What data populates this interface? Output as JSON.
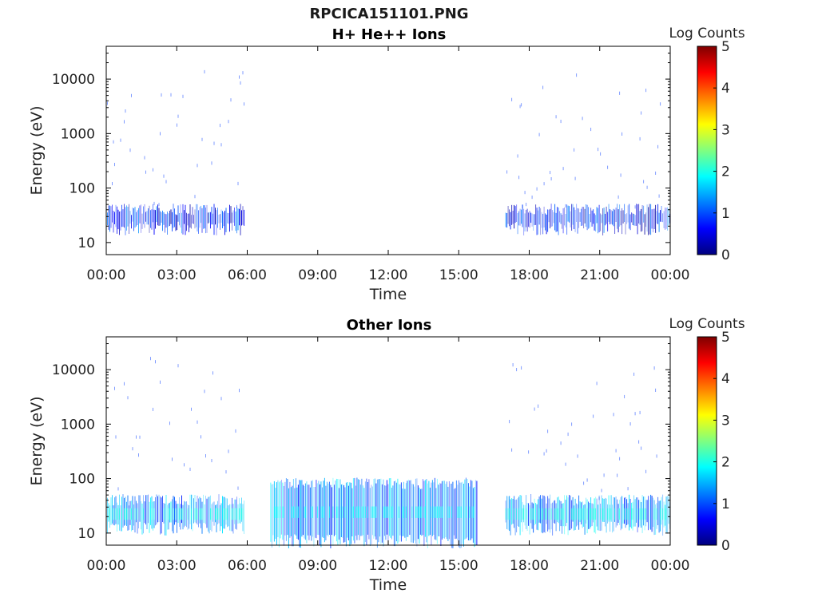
{
  "figure": {
    "title_line1": "RPCICA151101.PNG"
  },
  "chart_data": [
    {
      "type": "heatmap",
      "title": "H+ He++ Ions",
      "xlabel": "Time",
      "ylabel": "Energy (eV)",
      "x_ticks": [
        "00:00",
        "03:00",
        "06:00",
        "09:00",
        "12:00",
        "15:00",
        "18:00",
        "21:00",
        "00:00"
      ],
      "xlim_hours": [
        0,
        24
      ],
      "y_scale": "log",
      "y_ticks": [
        "10",
        "100",
        "1000",
        "10000"
      ],
      "ylim": [
        6,
        40000
      ],
      "colorbar": {
        "label": "Log Counts",
        "range": [
          0,
          5
        ],
        "ticks": [
          "0",
          "1",
          "2",
          "3",
          "4",
          "5"
        ],
        "colormap": "jet"
      },
      "data_segments": [
        {
          "start_hour": 0.0,
          "end_hour": 5.9,
          "band_energy_eV": [
            18,
            40
          ],
          "log_counts": 0.8,
          "sparse_high_energy": true
        },
        {
          "start_hour": 17.0,
          "end_hour": 24.0,
          "band_energy_eV": [
            18,
            40
          ],
          "log_counts": 0.8,
          "sparse_high_energy": true
        }
      ]
    },
    {
      "type": "heatmap",
      "title": "Other Ions",
      "xlabel": "Time",
      "ylabel": "Energy (eV)",
      "x_ticks": [
        "00:00",
        "03:00",
        "06:00",
        "09:00",
        "12:00",
        "15:00",
        "18:00",
        "21:00",
        "00:00"
      ],
      "xlim_hours": [
        0,
        24
      ],
      "y_scale": "log",
      "y_ticks": [
        "10",
        "100",
        "1000",
        "10000"
      ],
      "ylim": [
        6,
        40000
      ],
      "colorbar": {
        "label": "Log Counts",
        "range": [
          0,
          5
        ],
        "ticks": [
          "0",
          "1",
          "2",
          "3",
          "4",
          "5"
        ],
        "colormap": "jet"
      },
      "data_segments": [
        {
          "start_hour": 0.0,
          "end_hour": 5.9,
          "band_energy_eV": [
            12,
            40
          ],
          "log_counts": 1.4,
          "sparse_high_energy": true
        },
        {
          "start_hour": 7.0,
          "end_hour": 15.8,
          "band_energy_eV": [
            7,
            80
          ],
          "log_counts": 1.3,
          "sparse_high_energy": false
        },
        {
          "start_hour": 17.0,
          "end_hour": 24.0,
          "band_energy_eV": [
            12,
            40
          ],
          "log_counts": 1.4,
          "sparse_high_energy": true
        }
      ]
    }
  ]
}
